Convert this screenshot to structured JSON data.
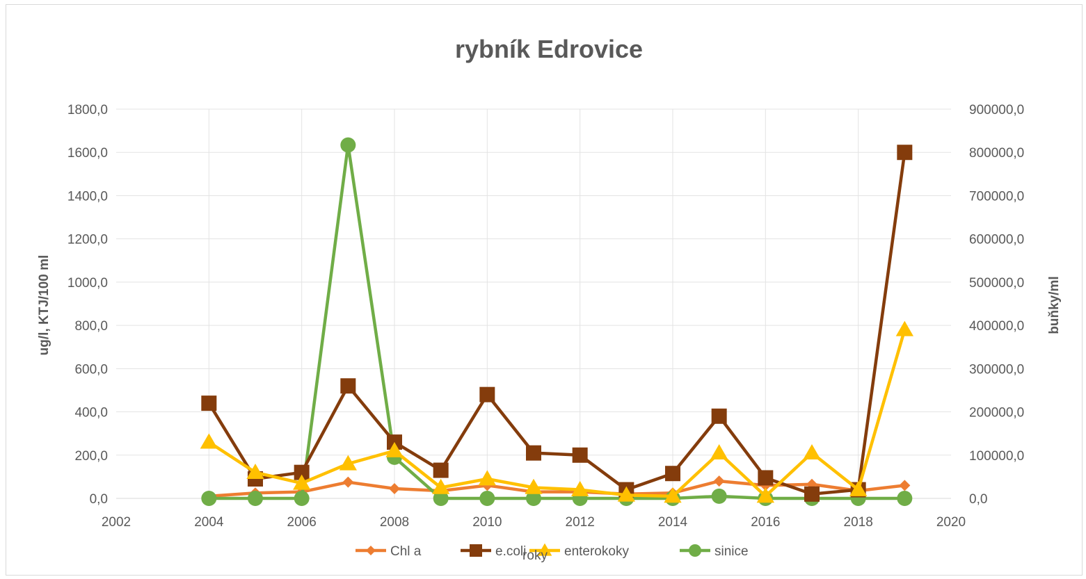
{
  "chart_data": {
    "type": "line",
    "title": "rybník Edrovice",
    "xlabel": "roky",
    "ylabel_left": "ug/l, KTJ/100 ml",
    "ylabel_right": "buňky/ml",
    "xlim": [
      2002,
      2020
    ],
    "x_ticks": [
      "2002",
      "2004",
      "2006",
      "2008",
      "2010",
      "2012",
      "2014",
      "2016",
      "2018",
      "2020"
    ],
    "ylim_left": [
      0,
      1800
    ],
    "y_ticks_left": [
      "0,0",
      "200,0",
      "400,0",
      "600,0",
      "800,0",
      "1000,0",
      "1200,0",
      "1400,0",
      "1600,0",
      "1800,0"
    ],
    "ylim_right": [
      0,
      900000
    ],
    "y_ticks_right": [
      "0,0",
      "100000,0",
      "200000,0",
      "300000,0",
      "400000,0",
      "500000,0",
      "600000,0",
      "700000,0",
      "800000,0",
      "900000,0"
    ],
    "grid": true,
    "legend_position": "bottom",
    "x": [
      2004,
      2005,
      2006,
      2007,
      2008,
      2009,
      2010,
      2011,
      2012,
      2013,
      2014,
      2015,
      2016,
      2017,
      2018,
      2019
    ],
    "series": [
      {
        "name": "Chl a",
        "axis": "left",
        "color": "#ED7D31",
        "marker": "diamond",
        "values": [
          10,
          25,
          30,
          75,
          45,
          35,
          60,
          30,
          30,
          20,
          25,
          80,
          60,
          65,
          35,
          60
        ]
      },
      {
        "name": "e.coli",
        "axis": "left",
        "color": "#843C0C",
        "marker": "square",
        "values": [
          440,
          90,
          120,
          520,
          260,
          130,
          480,
          210,
          200,
          40,
          115,
          380,
          95,
          20,
          40,
          1600
        ]
      },
      {
        "name": "enterokoky",
        "axis": "left",
        "color": "#FFC000",
        "marker": "triangle",
        "values": [
          260,
          120,
          70,
          160,
          220,
          50,
          90,
          50,
          40,
          15,
          10,
          210,
          10,
          210,
          40,
          780
        ]
      },
      {
        "name": "sinice",
        "axis": "right",
        "color": "#70AD47",
        "marker": "circle",
        "values": [
          0,
          0,
          0,
          817000,
          95000,
          0,
          0,
          0,
          0,
          0,
          0,
          5000,
          0,
          0,
          0,
          0
        ]
      }
    ]
  }
}
